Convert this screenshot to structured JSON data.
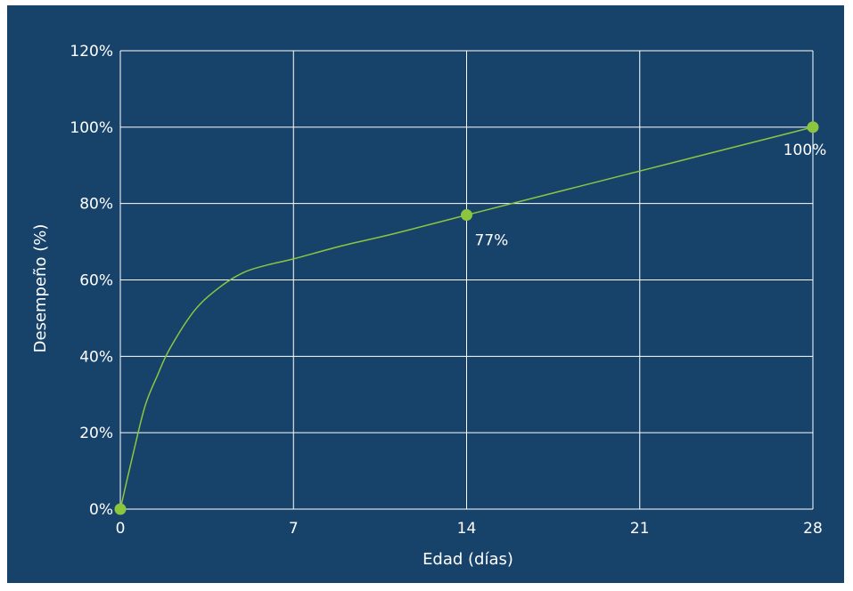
{
  "chart_data": {
    "type": "line",
    "xlabel": "Edad (días)",
    "ylabel": "Desempeño (%)",
    "xlim": [
      0,
      28
    ],
    "ylim": [
      0,
      120
    ],
    "x_ticks": [
      0,
      7,
      14,
      21,
      28
    ],
    "x_tick_labels": [
      "0",
      "7",
      "14",
      "21",
      "28"
    ],
    "y_ticks": [
      0,
      20,
      40,
      60,
      80,
      100,
      120
    ],
    "y_tick_labels": [
      "0%",
      "20%",
      "40%",
      "60%",
      "80%",
      "100%",
      "120%"
    ],
    "grid": true,
    "series": [
      {
        "curve": [
          {
            "x": 0,
            "y": 0
          },
          {
            "x": 0.5,
            "y": 14
          },
          {
            "x": 1,
            "y": 27
          },
          {
            "x": 1.5,
            "y": 35
          },
          {
            "x": 2,
            "y": 42
          },
          {
            "x": 3,
            "y": 52
          },
          {
            "x": 4,
            "y": 58
          },
          {
            "x": 5,
            "y": 62
          },
          {
            "x": 6,
            "y": 64
          },
          {
            "x": 7,
            "y": 65.5
          },
          {
            "x": 9,
            "y": 69
          },
          {
            "x": 11,
            "y": 72
          },
          {
            "x": 14,
            "y": 77
          },
          {
            "x": 21,
            "y": 88.5
          },
          {
            "x": 28,
            "y": 100
          }
        ],
        "markers": [
          {
            "x": 0,
            "y": 0,
            "label": ""
          },
          {
            "x": 14,
            "y": 77,
            "label": "77%"
          },
          {
            "x": 28,
            "y": 100,
            "label": "100%"
          }
        ]
      }
    ]
  },
  "colors": {
    "background": "#17436b",
    "grid": "#ffffff",
    "line": "#8cc63f",
    "marker": "#8cc63f",
    "text": "#ffffff"
  }
}
